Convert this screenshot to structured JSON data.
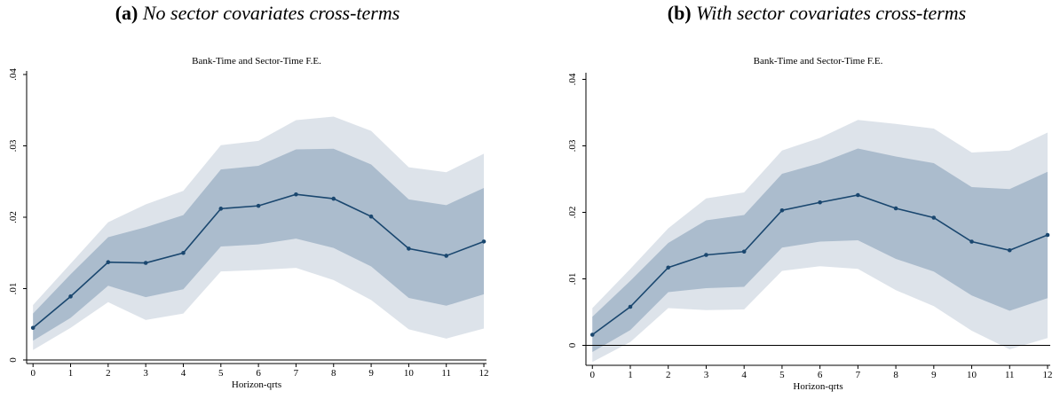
{
  "chart_data": [
    {
      "type": "line",
      "label": "(a)",
      "title": "No sector covariates cross-terms",
      "subtitle": "Bank-Time and Sector-Time F.E.",
      "xlabel": "Horizon-qrts",
      "x": [
        0,
        1,
        2,
        3,
        4,
        5,
        6,
        7,
        8,
        9,
        10,
        11,
        12
      ],
      "xlim": [
        -0.17,
        12.07
      ],
      "xticks": [
        0,
        1,
        2,
        3,
        4,
        5,
        6,
        7,
        8,
        9,
        10,
        11,
        12
      ],
      "ylim": [
        -0.0005,
        0.0405
      ],
      "yticks": [
        {
          "value": 0,
          "label": "0"
        },
        {
          "value": 0.01,
          "label": ".01"
        },
        {
          "value": 0.02,
          "label": ".02"
        },
        {
          "value": 0.03,
          "label": ".03"
        },
        {
          "value": 0.04,
          "label": ".04"
        }
      ],
      "hline": 0,
      "bands": [
        {
          "color": "#dde3ea",
          "upper": [
            0.0077,
            0.0135,
            0.0193,
            0.0218,
            0.0237,
            0.0301,
            0.0307,
            0.0336,
            0.0341,
            0.0321,
            0.027,
            0.0263,
            0.0289
          ],
          "lower": [
            0.0014,
            0.0045,
            0.0081,
            0.0056,
            0.0065,
            0.0124,
            0.0126,
            0.0129,
            0.0112,
            0.0084,
            0.0043,
            0.003,
            0.0044
          ]
        },
        {
          "color": "#abbccd",
          "upper": [
            0.0065,
            0.012,
            0.0172,
            0.0186,
            0.0203,
            0.0267,
            0.0272,
            0.0295,
            0.0296,
            0.0274,
            0.0225,
            0.0217,
            0.0241
          ],
          "lower": [
            0.0027,
            0.0059,
            0.0104,
            0.0088,
            0.0099,
            0.0159,
            0.0162,
            0.017,
            0.0157,
            0.0131,
            0.0087,
            0.0076,
            0.0092
          ]
        }
      ],
      "series": [
        {
          "color": "#1a476f",
          "values": [
            0.0045,
            0.0089,
            0.0137,
            0.0136,
            0.015,
            0.0212,
            0.0216,
            0.0232,
            0.0226,
            0.0201,
            0.0156,
            0.0146,
            0.0166
          ]
        }
      ]
    },
    {
      "type": "line",
      "label": "(b)",
      "title": "With sector covariates cross-terms",
      "subtitle": "Bank-Time and Sector-Time F.E.",
      "xlabel": "Horizon-qrts",
      "x": [
        0,
        1,
        2,
        3,
        4,
        5,
        6,
        7,
        8,
        9,
        10,
        11,
        12
      ],
      "xlim": [
        -0.17,
        12.07
      ],
      "xticks": [
        0,
        1,
        2,
        3,
        4,
        5,
        6,
        7,
        8,
        9,
        10,
        11,
        12
      ],
      "ylim": [
        -0.003,
        0.041
      ],
      "yticks": [
        {
          "value": 0,
          "label": "0"
        },
        {
          "value": 0.01,
          "label": ".01"
        },
        {
          "value": 0.02,
          "label": ".02"
        },
        {
          "value": 0.03,
          "label": ".03"
        },
        {
          "value": 0.04,
          "label": ".04"
        }
      ],
      "hline": 0,
      "bands": [
        {
          "color": "#dde3ea",
          "upper": [
            0.0056,
            0.0115,
            0.0176,
            0.0221,
            0.023,
            0.0293,
            0.0312,
            0.0339,
            0.0333,
            0.0326,
            0.029,
            0.0293,
            0.032
          ],
          "lower": [
            -0.0025,
            0.0005,
            0.0056,
            0.0053,
            0.0054,
            0.0112,
            0.0119,
            0.0115,
            0.0083,
            0.0059,
            0.0022,
            -0.0006,
            0.0011
          ]
        },
        {
          "color": "#abbccd",
          "upper": [
            0.0043,
            0.0097,
            0.0154,
            0.0188,
            0.0196,
            0.0258,
            0.0274,
            0.0296,
            0.0284,
            0.0274,
            0.0238,
            0.0235,
            0.0261
          ],
          "lower": [
            -0.001,
            0.0023,
            0.008,
            0.0086,
            0.0088,
            0.0147,
            0.0156,
            0.0158,
            0.013,
            0.0111,
            0.0075,
            0.0052,
            0.0071
          ]
        }
      ],
      "series": [
        {
          "color": "#1a476f",
          "values": [
            0.0016,
            0.0058,
            0.0117,
            0.0136,
            0.0141,
            0.0203,
            0.0215,
            0.0226,
            0.0206,
            0.0192,
            0.0156,
            0.0143,
            0.0166
          ]
        }
      ]
    }
  ]
}
